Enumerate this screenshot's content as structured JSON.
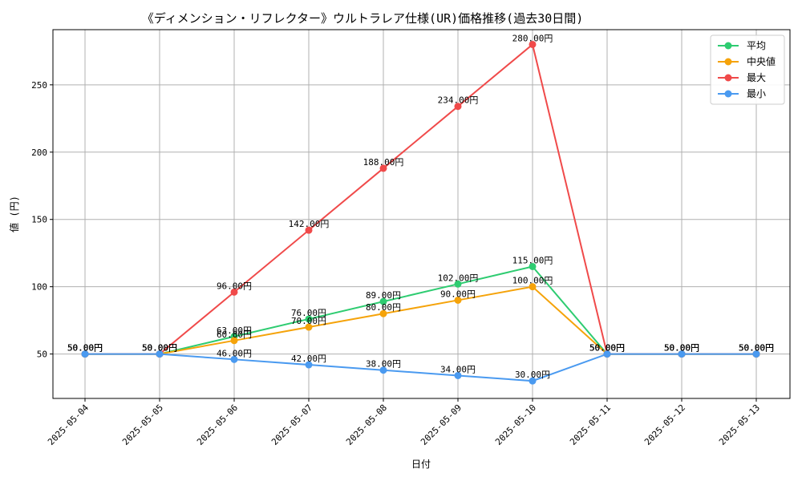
{
  "chart_data": {
    "type": "line",
    "title": "《ディメンション・リフレクター》ウルトラレア仕様(UR)価格推移(過去30日間)",
    "xlabel": "日付",
    "ylabel": "値 (円)",
    "categories": [
      "2025-05-04",
      "2025-05-05",
      "2025-05-06",
      "2025-05-07",
      "2025-05-08",
      "2025-05-09",
      "2025-05-10",
      "2025-05-11",
      "2025-05-12",
      "2025-05-13"
    ],
    "ylim": [
      17,
      291
    ],
    "yticks": [
      50,
      100,
      150,
      200,
      250
    ],
    "grid": true,
    "legend_position": "top-right",
    "series": [
      {
        "name": "平均",
        "color": "#2ecc71",
        "values": [
          50,
          50,
          63,
          76,
          89,
          102,
          115,
          50,
          50,
          50
        ]
      },
      {
        "name": "中央値",
        "color": "#f5a30a",
        "values": [
          50,
          50,
          60,
          70,
          80,
          90,
          100,
          50,
          50,
          50
        ]
      },
      {
        "name": "最大",
        "color": "#f04a4a",
        "values": [
          50,
          50,
          96,
          142,
          188,
          234,
          280,
          50,
          50,
          50
        ]
      },
      {
        "name": "最小",
        "color": "#4a9af0",
        "values": [
          50,
          50,
          46,
          42,
          38,
          34,
          30,
          50,
          50,
          50
        ]
      }
    ],
    "value_suffix": "円"
  }
}
